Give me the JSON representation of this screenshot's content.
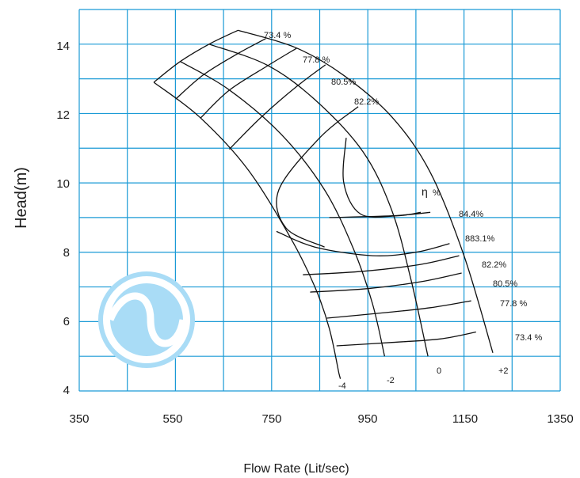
{
  "chart_data": {
    "type": "line",
    "title": "",
    "xlabel": "Flow Rate (Lit/sec)",
    "ylabel": "Head(m)",
    "xlim": [
      350,
      1350
    ],
    "ylim": [
      4,
      15
    ],
    "x_ticks": [
      "350",
      "550",
      "750",
      "950",
      "1150",
      "1350"
    ],
    "y_ticks": [
      "4",
      "6",
      "8",
      "10",
      "12",
      "14"
    ],
    "grid": true,
    "colors": {
      "grid": "#1a9ad6",
      "curves": "#111111",
      "logo": "#a9dcf6"
    },
    "head_curves": [
      {
        "name": "+2",
        "x": [
          680,
          800,
          900,
          1000,
          1080,
          1150,
          1210
        ],
        "y": [
          14.4,
          13.9,
          13.1,
          11.9,
          10.3,
          7.9,
          5.1
        ]
      },
      {
        "name": "0",
        "x": [
          620,
          740,
          840,
          940,
          1000,
          1040,
          1075
        ],
        "y": [
          14.0,
          13.4,
          12.4,
          10.9,
          9.2,
          7.2,
          5.0
        ]
      },
      {
        "name": "-2",
        "x": [
          560,
          660,
          770,
          860,
          920,
          960,
          985
        ],
        "y": [
          13.5,
          12.7,
          11.4,
          9.8,
          8.1,
          6.5,
          5.0
        ]
      },
      {
        "name": "-4",
        "x": [
          505,
          600,
          700,
          790,
          840,
          870,
          890
        ],
        "y": [
          12.9,
          11.9,
          10.4,
          8.4,
          7.0,
          5.8,
          4.5
        ]
      }
    ],
    "efficiency_curves": [
      {
        "name": "73.4 %",
        "x": [
          885,
          1000,
          1100,
          1175
        ],
        "y": [
          5.3,
          5.4,
          5.5,
          5.7
        ]
      },
      {
        "name": "77.8 %",
        "x": [
          865,
          980,
          1080,
          1165
        ],
        "y": [
          6.1,
          6.25,
          6.4,
          6.6
        ]
      },
      {
        "name": "80.5%",
        "x": [
          830,
          950,
          1060,
          1145
        ],
        "y": [
          6.85,
          6.95,
          7.15,
          7.4
        ]
      },
      {
        "name": "82.2%",
        "x": [
          815,
          940,
          1060,
          1140
        ],
        "y": [
          7.35,
          7.45,
          7.65,
          7.9
        ]
      },
      {
        "name": "883.1%",
        "x": [
          760,
          840,
          960,
          1050,
          1120
        ],
        "y": [
          8.6,
          8.15,
          7.9,
          8.0,
          8.25
        ]
      },
      {
        "name": "84.4%",
        "x": [
          870,
          1000,
          1080
        ],
        "y": [
          9.0,
          9.05,
          9.15
        ]
      }
    ],
    "efficiency_loops": [
      {
        "name": "82.2%",
        "x": [
          905,
          900,
          935,
          1010,
          1060
        ],
        "y": [
          11.3,
          10.0,
          9.1,
          9.05,
          9.15
        ]
      },
      {
        "name": "80.5%",
        "x": [
          930,
          850,
          765,
          780,
          860
        ],
        "y": [
          12.2,
          11.3,
          9.8,
          8.7,
          8.15
        ]
      }
    ],
    "bottom_tails": [
      {
        "x": [
          890,
          893
        ],
        "y": [
          4.5,
          4.35
        ]
      }
    ],
    "iso_eff_lines": [
      {
        "x": [
          505,
          680
        ],
        "y": [
          12.9,
          14.4
        ]
      },
      {
        "x": [
          560,
          740
        ],
        "y": [
          13.5,
          13.7
        ]
      }
    ],
    "labels": {
      "eff_73_top": "73.4 %",
      "eff_77_top": "77.8 %",
      "eff_80_top": "80.5%",
      "eff_82_top": "82.2%",
      "eta": "η",
      "eta_pct": "%",
      "eff_84": "84.4%",
      "eff_83": "883.1%",
      "eff_82_r": "82.2%",
      "eff_80_r": "80.5%",
      "eff_77_r": "77.8 %",
      "eff_73_r": "73.4 %",
      "blade_m4": "-4",
      "blade_m2": "-2",
      "blade_0": "0",
      "blade_p2": "+2"
    }
  }
}
